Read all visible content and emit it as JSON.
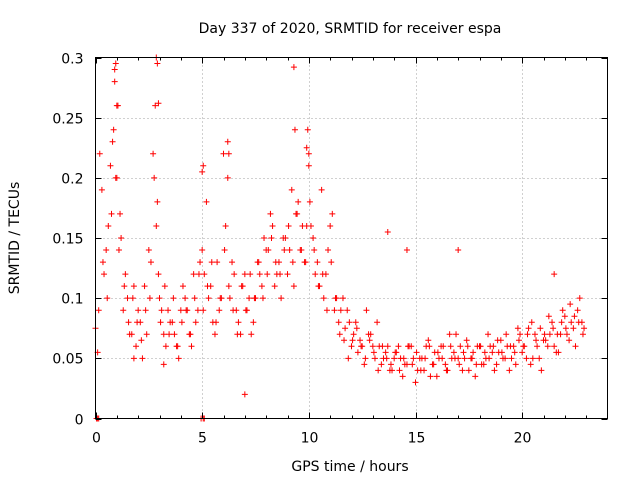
{
  "chart_data": {
    "type": "scatter",
    "title": "Day 337 of 2020, SRMTID for receiver espa",
    "xlabel": "GPS time / hours",
    "ylabel": "SRMTID / TECUs",
    "xlim": [
      0,
      24
    ],
    "ylim": [
      0,
      0.3
    ],
    "xticks": [
      0,
      5,
      10,
      15,
      20
    ],
    "yticks": [
      0,
      0.05,
      0.1,
      0.15,
      0.2,
      0.25,
      0.3
    ],
    "xtick_labels": [
      "0",
      "5",
      "10",
      "15",
      "20"
    ],
    "ytick_labels": [
      "0",
      "0.05",
      "0.1",
      "0.15",
      "0.2",
      "0.25",
      "0.3"
    ],
    "grid": true,
    "marker": "+",
    "color": "#ff0000",
    "series": [
      {
        "name": "SRMTID",
        "x": [
          0.0,
          0.2,
          0.4,
          0.6,
          0.8,
          0.9,
          1.0,
          1.1,
          1.3,
          1.5,
          1.7,
          1.9,
          2.1,
          2.3,
          2.5,
          2.7,
          2.8,
          2.9,
          3.0,
          3.2,
          3.4,
          3.6,
          3.8,
          4.0,
          4.2,
          4.4,
          4.6,
          4.8,
          5.0,
          5.2,
          5.4,
          5.6,
          5.8,
          6.0,
          6.1,
          6.3,
          6.5,
          6.7,
          6.9,
          7.1,
          7.3,
          7.5,
          7.7,
          7.9,
          8.1,
          8.3,
          8.5,
          8.7,
          8.9,
          9.1,
          9.2,
          9.4,
          9.6,
          9.8,
          10.0,
          10.1,
          10.3,
          10.5,
          10.7,
          10.9,
          11.1,
          11.3,
          11.5,
          11.7,
          11.9,
          12.1,
          12.3,
          12.5,
          12.7,
          12.9,
          13.1,
          13.3,
          13.5,
          13.7,
          13.9,
          14.1,
          14.3,
          14.5,
          14.7,
          14.9,
          15.1,
          15.3,
          15.5,
          15.7,
          15.9,
          16.1,
          16.3,
          16.5,
          16.7,
          16.9,
          17.1,
          17.3,
          17.5,
          17.7,
          17.9,
          18.1,
          18.3,
          18.5,
          18.7,
          18.9,
          19.1,
          19.3,
          19.5,
          19.7,
          19.9,
          20.1,
          20.3,
          20.5,
          20.7,
          20.9,
          21.1,
          21.3,
          21.5,
          21.7,
          21.9,
          22.1,
          22.3,
          22.5,
          22.7,
          22.9,
          0.1,
          0.3,
          0.5,
          0.7,
          0.85,
          1.05,
          1.2,
          1.4,
          1.6,
          1.8,
          2.0,
          2.2,
          2.4,
          2.6,
          2.75,
          2.95,
          3.1,
          3.3,
          3.5,
          3.7,
          3.9,
          4.1,
          4.3,
          4.5,
          4.7,
          4.9,
          5.1,
          5.3,
          5.5,
          5.7,
          5.9,
          6.2,
          6.4,
          6.6,
          6.8,
          7.0,
          7.2,
          7.4,
          7.6,
          7.8,
          8.0,
          8.2,
          8.4,
          8.6,
          8.8,
          9.0,
          9.3,
          9.5,
          9.7,
          9.9,
          10.2,
          10.4,
          10.6,
          10.8,
          11.0,
          11.2,
          11.4,
          11.6,
          11.8,
          12.0,
          12.2,
          12.4,
          12.6,
          12.8,
          13.0,
          13.2,
          13.4,
          13.6,
          13.8,
          14.0,
          14.2,
          14.4,
          14.6,
          14.8,
          15.0,
          15.2,
          15.4,
          15.6,
          15.8,
          16.0,
          16.2,
          16.4,
          16.6,
          16.8,
          17.0,
          17.2,
          17.4,
          17.6,
          17.8,
          18.0,
          18.2,
          18.4,
          18.6,
          18.8,
          19.0,
          19.2,
          19.4,
          19.6,
          19.8,
          20.0,
          20.2,
          20.4,
          20.6,
          20.8,
          21.0,
          21.2,
          21.4,
          21.6,
          21.8,
          22.0,
          22.2,
          22.4,
          22.6,
          22.8,
          0.15,
          0.35,
          0.55,
          0.75,
          0.95,
          1.15,
          1.35,
          1.55,
          1.75,
          1.95,
          2.15,
          2.35,
          2.55,
          2.85,
          3.05,
          3.25,
          3.45,
          3.65,
          3.85,
          4.05,
          4.25,
          4.45,
          4.65,
          4.85,
          5.05,
          5.25,
          5.45,
          5.65,
          5.85,
          6.05,
          6.25,
          6.45,
          6.65,
          6.85,
          7.05,
          7.25,
          7.45,
          7.65,
          7.85,
          8.05,
          8.25,
          8.45,
          8.65,
          8.85,
          9.05,
          9.25,
          9.45,
          9.65,
          9.85,
          10.05,
          10.25,
          10.45,
          10.65,
          10.85,
          11.05,
          11.25,
          11.45,
          11.65,
          11.85,
          12.05,
          12.25,
          12.45,
          12.65,
          12.85,
          13.05,
          13.25,
          13.45,
          13.65,
          13.85,
          14.05,
          14.25,
          14.45,
          14.65,
          14.85,
          15.05,
          15.25,
          15.45,
          15.65,
          15.85,
          16.05,
          16.25,
          16.45,
          16.65,
          16.85,
          17.05,
          17.25,
          17.45,
          17.65,
          17.85,
          18.05,
          18.25,
          18.45,
          18.65,
          18.85,
          19.05,
          19.25,
          19.45,
          19.65,
          19.85,
          20.05,
          20.25,
          20.45,
          20.65,
          20.85,
          21.05,
          21.25,
          21.45,
          21.65,
          21.85,
          22.05,
          22.25,
          22.45,
          22.65,
          22.85,
          0.9,
          0.95,
          1.0,
          2.85,
          2.9,
          2.95,
          9.3,
          9.35,
          9.9,
          9.95,
          10.0,
          6.2,
          6.25,
          5.0,
          5.05,
          0.05,
          0.1,
          0.15,
          4.95,
          5.05,
          5.1,
          13.7,
          14.6,
          17.0,
          21.5,
          7.0,
          3.2,
          1.8
        ],
        "y": [
          0.075,
          0.22,
          0.12,
          0.16,
          0.23,
          0.28,
          0.2,
          0.14,
          0.09,
          0.1,
          0.07,
          0.06,
          0.08,
          0.11,
          0.14,
          0.22,
          0.26,
          0.18,
          0.1,
          0.07,
          0.09,
          0.08,
          0.06,
          0.09,
          0.1,
          0.07,
          0.12,
          0.09,
          0.14,
          0.18,
          0.11,
          0.07,
          0.09,
          0.22,
          0.16,
          0.1,
          0.12,
          0.08,
          0.11,
          0.09,
          0.07,
          0.1,
          0.12,
          0.15,
          0.14,
          0.16,
          0.12,
          0.1,
          0.15,
          0.14,
          0.19,
          0.17,
          0.14,
          0.13,
          0.22,
          0.16,
          0.12,
          0.11,
          0.1,
          0.14,
          0.17,
          0.1,
          0.09,
          0.075,
          0.08,
          0.07,
          0.055,
          0.06,
          0.09,
          0.07,
          0.05,
          0.06,
          0.05,
          0.06,
          0.04,
          0.055,
          0.05,
          0.045,
          0.06,
          0.05,
          0.04,
          0.05,
          0.06,
          0.035,
          0.055,
          0.05,
          0.06,
          0.04,
          0.05,
          0.07,
          0.06,
          0.05,
          0.04,
          0.055,
          0.06,
          0.045,
          0.05,
          0.06,
          0.04,
          0.055,
          0.05,
          0.06,
          0.05,
          0.045,
          0.07,
          0.06,
          0.075,
          0.05,
          0.06,
          0.04,
          0.065,
          0.07,
          0.06,
          0.055,
          0.09,
          0.07,
          0.08,
          0.06,
          0.1,
          0.075,
          0.055,
          0.19,
          0.14,
          0.21,
          0.24,
          0.26,
          0.15,
          0.12,
          0.07,
          0.11,
          0.09,
          0.05,
          0.07,
          0.13,
          0.2,
          0.12,
          0.09,
          0.06,
          0.08,
          0.07,
          0.05,
          0.11,
          0.09,
          0.06,
          0.08,
          0.13,
          0.12,
          0.1,
          0.08,
          0.13,
          0.1,
          0.2,
          0.13,
          0.09,
          0.07,
          0.12,
          0.1,
          0.08,
          0.13,
          0.11,
          0.14,
          0.17,
          0.11,
          0.13,
          0.15,
          0.12,
          0.11,
          0.18,
          0.16,
          0.16,
          0.15,
          0.13,
          0.19,
          0.12,
          0.16,
          0.09,
          0.08,
          0.1,
          0.09,
          0.06,
          0.08,
          0.065,
          0.045,
          0.07,
          0.06,
          0.08,
          0.045,
          0.055,
          0.04,
          0.05,
          0.06,
          0.035,
          0.045,
          0.06,
          0.03,
          0.05,
          0.04,
          0.065,
          0.045,
          0.035,
          0.06,
          0.045,
          0.07,
          0.055,
          0.05,
          0.04,
          0.065,
          0.05,
          0.035,
          0.06,
          0.045,
          0.07,
          0.055,
          0.045,
          0.065,
          0.05,
          0.04,
          0.06,
          0.075,
          0.055,
          0.05,
          0.045,
          0.07,
          0.05,
          0.065,
          0.06,
          0.08,
          0.055,
          0.07,
          0.085,
          0.065,
          0.075,
          0.09,
          0.08,
          0.09,
          0.13,
          0.1,
          0.17,
          0.2,
          0.17,
          0.11,
          0.08,
          0.1,
          0.08,
          0.065,
          0.09,
          0.1,
          0.16,
          0.08,
          0.11,
          0.07,
          0.1,
          0.06,
          0.08,
          0.09,
          0.07,
          0.1,
          0.12,
          0.09,
          0.11,
          0.13,
          0.08,
          0.1,
          0.14,
          0.11,
          0.09,
          0.07,
          0.11,
          0.09,
          0.12,
          0.1,
          0.13,
          0.1,
          0.12,
          0.15,
          0.13,
          0.12,
          0.14,
          0.16,
          0.13,
          0.17,
          0.14,
          0.13,
          0.18,
          0.14,
          0.11,
          0.12,
          0.09,
          0.13,
          0.1,
          0.07,
          0.065,
          0.05,
          0.065,
          0.075,
          0.06,
          0.05,
          0.065,
          0.055,
          0.04,
          0.06,
          0.05,
          0.045,
          0.055,
          0.04,
          0.05,
          0.06,
          0.045,
          0.055,
          0.04,
          0.05,
          0.06,
          0.045,
          0.055,
          0.05,
          0.04,
          0.06,
          0.05,
          0.045,
          0.055,
          0.06,
          0.05,
          0.045,
          0.06,
          0.055,
          0.05,
          0.06,
          0.065,
          0.055,
          0.07,
          0.06,
          0.055,
          0.065,
          0.06,
          0.07,
          0.08,
          0.065,
          0.075,
          0.07,
          0.085,
          0.075,
          0.07,
          0.08,
          0.075,
          0.095,
          0.085,
          0.08,
          0.07,
          0.29,
          0.295,
          0.26,
          0.3,
          0.295,
          0.262,
          0.292,
          0.24,
          0.225,
          0.24,
          0.21,
          0.23,
          0.22,
          0.205,
          0.21,
          0,
          0,
          0,
          0,
          0,
          0,
          0.155,
          0.14,
          0.14,
          0.12,
          0.02,
          0.045,
          0.05
        ]
      }
    ]
  }
}
